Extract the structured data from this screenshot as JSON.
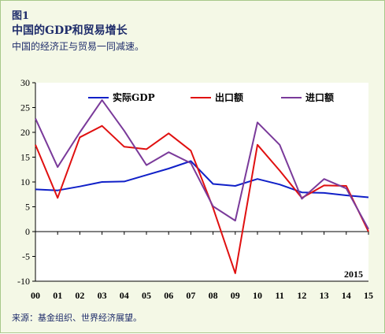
{
  "header": {
    "figure_number": "图1",
    "title": "中国的GDP和贸易增长",
    "subtitle": "中国的经济正与贸易一同减速。"
  },
  "footer": {
    "source": "来源：基金组织、世界经济展望。"
  },
  "chart_data": {
    "type": "line",
    "categories": [
      "00",
      "01",
      "02",
      "03",
      "04",
      "05",
      "06",
      "07",
      "08",
      "09",
      "10",
      "11",
      "12",
      "13",
      "14",
      "15"
    ],
    "series": [
      {
        "name": "实际GDP",
        "color": "#1020c8",
        "values": [
          8.5,
          8.3,
          9.1,
          10.0,
          10.1,
          11.4,
          12.7,
          14.2,
          9.6,
          9.2,
          10.6,
          9.5,
          7.9,
          7.8,
          7.3,
          6.9
        ]
      },
      {
        "name": "出口额",
        "color": "#e01010",
        "values": [
          17.5,
          6.8,
          19.0,
          21.3,
          17.1,
          16.6,
          19.8,
          16.3,
          4.8,
          -8.4,
          17.5,
          12.3,
          6.8,
          9.3,
          9.2,
          0.0
        ]
      },
      {
        "name": "进口额",
        "color": "#7a3a9a",
        "values": [
          22.8,
          13.0,
          20.0,
          26.5,
          20.3,
          13.4,
          16.0,
          13.8,
          5.1,
          2.2,
          22.0,
          17.5,
          6.6,
          10.6,
          8.7,
          0.5
        ]
      }
    ],
    "ylim": [
      -10,
      30
    ],
    "yticks": [
      -10,
      -5,
      0,
      5,
      10,
      15,
      20,
      25,
      30
    ],
    "grid": false,
    "legend_position": "top",
    "annotation": "2015"
  }
}
